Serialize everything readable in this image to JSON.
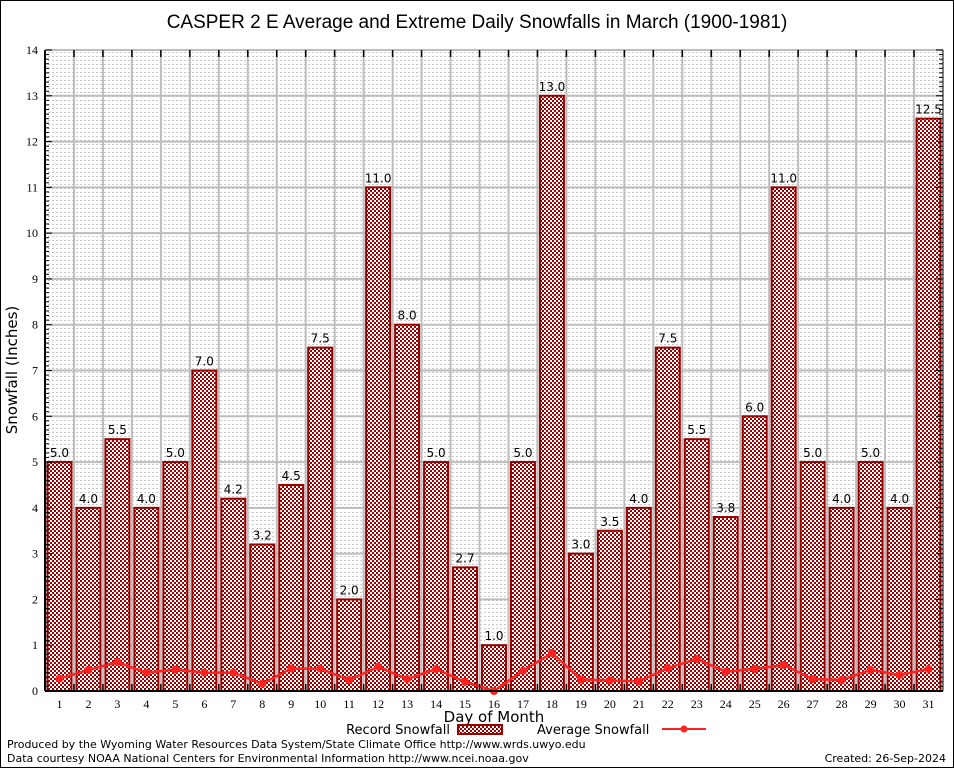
{
  "chart_data": {
    "type": "bar",
    "title": "CASPER 2 E Average and Extreme Daily Snowfalls in March (1900-1981)",
    "xlabel": "Day of Month",
    "ylabel": "Snowfall (Inches)",
    "ylim": [
      0,
      14
    ],
    "yticks": [
      0,
      1,
      2,
      3,
      4,
      5,
      6,
      7,
      8,
      9,
      10,
      11,
      12,
      13,
      14
    ],
    "grid": true,
    "categories": [
      "1",
      "2",
      "3",
      "4",
      "5",
      "6",
      "7",
      "8",
      "9",
      "10",
      "11",
      "12",
      "13",
      "14",
      "15",
      "16",
      "17",
      "18",
      "19",
      "20",
      "21",
      "22",
      "23",
      "24",
      "25",
      "26",
      "27",
      "28",
      "29",
      "30",
      "31"
    ],
    "series": [
      {
        "name": "Record Snowfall",
        "type": "bar",
        "color": "#990000",
        "values": [
          5.0,
          4.0,
          5.5,
          4.0,
          5.0,
          7.0,
          4.2,
          3.2,
          4.5,
          7.5,
          2.0,
          11.0,
          8.0,
          5.0,
          2.7,
          1.0,
          5.0,
          13.0,
          3.0,
          3.5,
          4.0,
          7.5,
          5.5,
          3.8,
          6.0,
          11.0,
          5.0,
          4.0,
          5.0,
          4.0,
          12.5
        ],
        "labels": [
          "5.0",
          "4.0",
          "5.5",
          "4.0",
          "5.0",
          "7.0",
          "4.2",
          "3.2",
          "4.5",
          "7.5",
          "2.0",
          "11.0",
          "8.0",
          "5.0",
          "2.7",
          "1.0",
          "5.0",
          "13.0",
          "3.0",
          "3.5",
          "4.0",
          "7.5",
          "5.5",
          "3.8",
          "6.0",
          "11.0",
          "5.0",
          "4.0",
          "5.0",
          "4.0",
          "12.5"
        ]
      },
      {
        "name": "Average Snowfall",
        "type": "line",
        "color": "#ff2020",
        "values": [
          0.27,
          0.46,
          0.63,
          0.4,
          0.47,
          0.4,
          0.4,
          0.16,
          0.49,
          0.49,
          0.24,
          0.53,
          0.26,
          0.48,
          0.2,
          0.0,
          0.44,
          0.83,
          0.25,
          0.23,
          0.21,
          0.5,
          0.7,
          0.42,
          0.48,
          0.57,
          0.26,
          0.24,
          0.46,
          0.35,
          0.48
        ]
      }
    ],
    "legend": {
      "placement": "bottom-center"
    }
  },
  "footer": {
    "line1": "Produced by the Wyoming Water Resources Data System/State Climate Office http://www.wrds.uwyo.edu",
    "line2": "Data courtesy NOAA National Centers for Environmental Information http://www.ncei.noaa.gov",
    "created": "Created: 26-Sep-2024"
  }
}
